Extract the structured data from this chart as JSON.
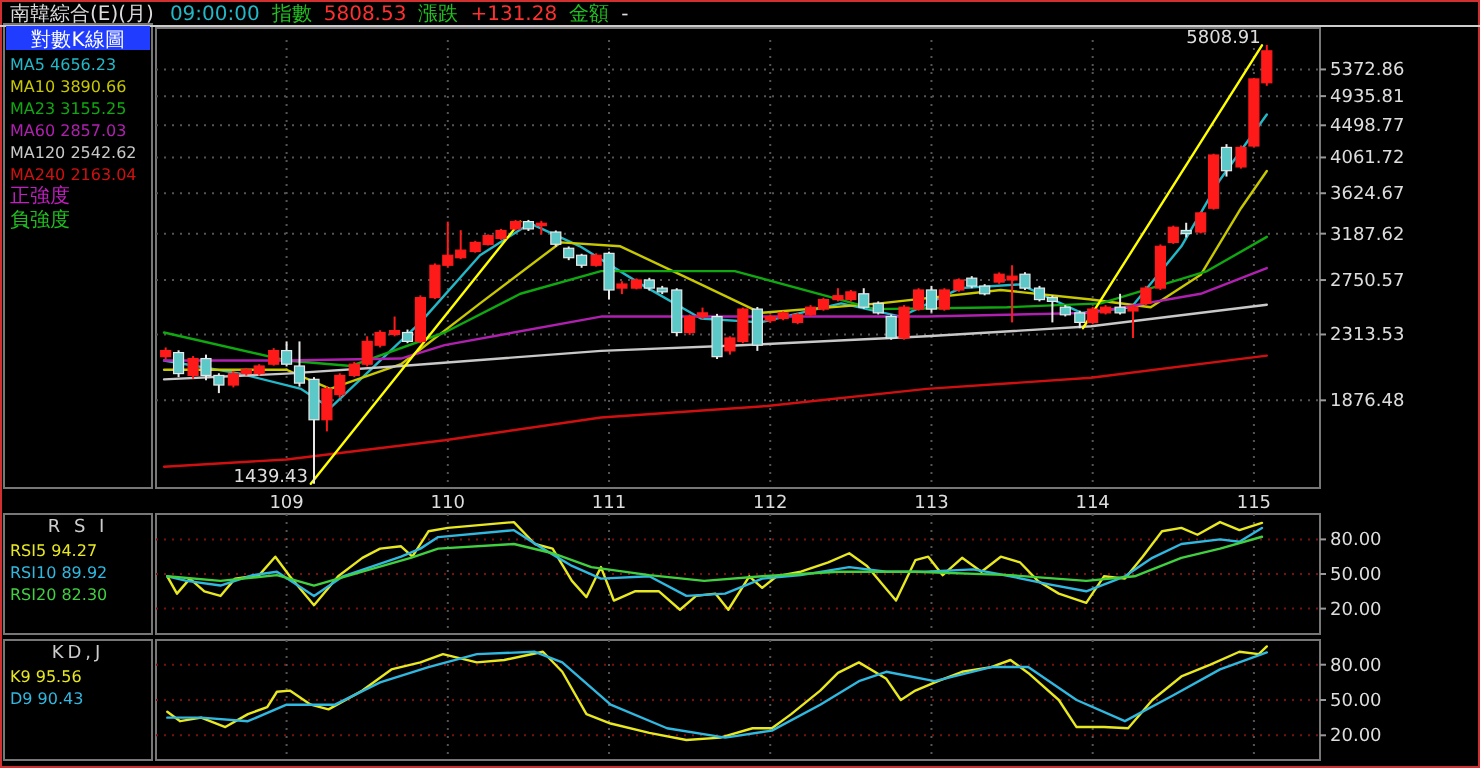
{
  "chart_data": [
    {
      "type": "candlestick",
      "title": "南韓綜合(E)(月)",
      "legend_title": "對數K線圖",
      "legend": "left",
      "log": true,
      "grid": true,
      "colors": [
        "#ff1a1a",
        "#5cc8c8",
        "#ff1a1a",
        "#5cc8c8",
        "#5cc8c8",
        "#ff1a1a",
        "#ff1a1a",
        "#ff1a1a",
        "#ff1a1a",
        "#5cc8c8",
        "#5cc8c8",
        "#5cc8c8",
        "#ff1a1a",
        "#ff1a1a",
        "#ff1a1a",
        "#ff1a1a",
        "#ff1a1a",
        "#ff1a1a",
        "#5cc8c8",
        "#ff1a1a",
        "#ff1a1a",
        "#ff1a1a",
        "#ff1a1a",
        "#ff1a1a",
        "#ff1a1a",
        "#ff1a1a",
        "#ff1a1a",
        "#5cc8c8",
        "#ff1a1a",
        "#5cc8c8",
        "#5cc8c8",
        "#5cc8c8",
        "#ff1a1a",
        "#5cc8c8",
        "#ff1a1a",
        "#ff1a1a",
        "#5cc8c8",
        "#5cc8c8",
        "#5cc8c8",
        "#ff1a1a",
        "#ff1a1a",
        "#5cc8c8",
        "#ff1a1a",
        "#ff1a1a",
        "#5cc8c8",
        "#ff1a1a",
        "#ff1a1a",
        "#ff1a1a",
        "#ff1a1a",
        "#ff1a1a",
        "#ff1a1a",
        "#ff1a1a",
        "#5cc8c8",
        "#5cc8c8",
        "#5cc8c8",
        "#ff1a1a",
        "#ff1a1a",
        "#5cc8c8",
        "#ff1a1a",
        "#ff1a1a",
        "#5cc8c8",
        "#5cc8c8",
        "#ff1a1a",
        "#ff1a1a",
        "#5cc8c8",
        "#5cc8c8",
        "#5cc8c8",
        "#5cc8c8",
        "#5cc8c8",
        "#ff1a1a",
        "#ff1a1a",
        "#5cc8c8",
        "#ff1a1a",
        "#ff1a1a",
        "#ff1a1a",
        "#ff1a1a",
        "#5cc8c8",
        "#ff1a1a",
        "#ff1a1a",
        "#5cc8c8",
        "#ff1a1a",
        "#ff1a1a",
        "#ff1a1a"
      ],
      "annotations": [
        "09:00:00",
        "指數",
        "5808.53",
        "漲跌",
        "+131.28",
        "金額",
        "-",
        "正強度",
        "負強度",
        {
          "text": "1439.43",
          "x": 109.17,
          "y": 1439.43
        },
        {
          "text": "5808.91",
          "x": 115.08,
          "y": 5808.91
        }
      ],
      "xlim": [
        108.19,
        115.41
      ],
      "xticks": [
        109,
        110,
        111,
        112,
        113,
        114,
        115
      ],
      "ylim": [
        1420,
        5900
      ],
      "yticks": [
        1876.48,
        2313.53,
        2750.57,
        3187.62,
        3624.67,
        4061.72,
        4498.77,
        4935.81,
        5372.86
      ],
      "x": [
        108.25,
        108.33,
        108.42,
        108.5,
        108.58,
        108.67,
        108.75,
        108.83,
        108.92,
        109.0,
        109.08,
        109.17,
        109.25,
        109.33,
        109.42,
        109.5,
        109.58,
        109.67,
        109.75,
        109.83,
        109.92,
        110.0,
        110.08,
        110.17,
        110.25,
        110.33,
        110.42,
        110.5,
        110.58,
        110.67,
        110.75,
        110.83,
        110.92,
        111.0,
        111.08,
        111.17,
        111.25,
        111.33,
        111.42,
        111.5,
        111.58,
        111.67,
        111.75,
        111.83,
        111.92,
        112.0,
        112.08,
        112.17,
        112.25,
        112.33,
        112.42,
        112.5,
        112.58,
        112.67,
        112.75,
        112.83,
        112.92,
        113.0,
        113.08,
        113.17,
        113.25,
        113.33,
        113.42,
        113.5,
        113.58,
        113.67,
        113.75,
        113.83,
        113.92,
        114.0,
        114.08,
        114.17,
        114.25,
        114.33,
        114.42,
        114.5,
        114.58,
        114.67,
        114.75,
        114.83,
        114.92,
        115.0,
        115.08
      ],
      "ohlc": [
        [
          2156,
          2220,
          2140,
          2198
        ],
        [
          2184,
          2200,
          2020,
          2043
        ],
        [
          2031,
          2160,
          2010,
          2143
        ],
        [
          2143,
          2170,
          2000,
          2031
        ],
        [
          2031,
          2045,
          1920,
          1970
        ],
        [
          1970,
          2060,
          1955,
          2043
        ],
        [
          2043,
          2080,
          2030,
          2068
        ],
        [
          2043,
          2105,
          2030,
          2093
        ],
        [
          2105,
          2215,
          2095,
          2198
        ],
        [
          2198,
          2263,
          2090,
          2105
        ],
        [
          2093,
          2263,
          1960,
          1982
        ],
        [
          2006,
          2020,
          1439.43,
          1764
        ],
        [
          1764,
          1960,
          1700,
          1946
        ],
        [
          1911,
          2045,
          1890,
          2031
        ],
        [
          2031,
          2120,
          2020,
          2105
        ],
        [
          2105,
          2300,
          2090,
          2263
        ],
        [
          2236,
          2345,
          2220,
          2328
        ],
        [
          2314,
          2449,
          2300,
          2342
        ],
        [
          2328,
          2350,
          2250,
          2263
        ],
        [
          2263,
          2620,
          2250,
          2601
        ],
        [
          2601,
          2900,
          2590,
          2883
        ],
        [
          2883,
          3312,
          2860,
          2976
        ],
        [
          2953,
          3223,
          2940,
          3025
        ],
        [
          3012,
          3115,
          3000,
          3100
        ],
        [
          3080,
          3180,
          3070,
          3168
        ],
        [
          3140,
          3235,
          3125,
          3220
        ],
        [
          3236,
          3330,
          3220,
          3312
        ],
        [
          3312,
          3330,
          3215,
          3236
        ],
        [
          3270,
          3320,
          3180,
          3295
        ],
        [
          3204,
          3220,
          3060,
          3082
        ],
        [
          3043,
          3060,
          2930,
          2953
        ],
        [
          2976,
          2990,
          2860,
          2883
        ],
        [
          2883,
          2995,
          2870,
          2976
        ],
        [
          2994,
          3010,
          2585,
          2665
        ],
        [
          2681,
          2740,
          2630,
          2716
        ],
        [
          2681,
          2765,
          2670,
          2751
        ],
        [
          2751,
          2770,
          2660,
          2681
        ],
        [
          2681,
          2700,
          2630,
          2649
        ],
        [
          2665,
          2680,
          2300,
          2328
        ],
        [
          2328,
          2465,
          2310,
          2449
        ],
        [
          2449,
          2520,
          2430,
          2478
        ],
        [
          2449,
          2470,
          2140,
          2156
        ],
        [
          2196,
          2300,
          2170,
          2288
        ],
        [
          2263,
          2520,
          2250,
          2508
        ],
        [
          2508,
          2525,
          2196,
          2236
        ],
        [
          2418,
          2465,
          2400,
          2449
        ],
        [
          2434,
          2490,
          2420,
          2478
        ],
        [
          2404,
          2478,
          2390,
          2463
        ],
        [
          2463,
          2540,
          2450,
          2523
        ],
        [
          2508,
          2600,
          2495,
          2585
        ],
        [
          2585,
          2680,
          2570,
          2617
        ],
        [
          2585,
          2665,
          2570,
          2649
        ],
        [
          2633,
          2680,
          2510,
          2523
        ],
        [
          2554,
          2570,
          2465,
          2478
        ],
        [
          2449,
          2465,
          2275,
          2288
        ],
        [
          2288,
          2540,
          2275,
          2523
        ],
        [
          2508,
          2680,
          2495,
          2665
        ],
        [
          2665,
          2700,
          2480,
          2508
        ],
        [
          2508,
          2680,
          2495,
          2665
        ],
        [
          2665,
          2765,
          2650,
          2751
        ],
        [
          2767,
          2785,
          2680,
          2698
        ],
        [
          2698,
          2715,
          2620,
          2633
        ],
        [
          2733,
          2818,
          2718,
          2802
        ],
        [
          2751,
          2883,
          2404,
          2785
        ],
        [
          2802,
          2820,
          2665,
          2681
        ],
        [
          2681,
          2700,
          2570,
          2585
        ],
        [
          2601,
          2620,
          2404,
          2570
        ],
        [
          2523,
          2540,
          2450,
          2463
        ],
        [
          2478,
          2495,
          2360,
          2404
        ],
        [
          2404,
          2525,
          2390,
          2508
        ],
        [
          2478,
          2540,
          2465,
          2523
        ],
        [
          2523,
          2633,
          2465,
          2478
        ],
        [
          2493,
          2540,
          2288,
          2523
        ],
        [
          2554,
          2700,
          2540,
          2681
        ],
        [
          2681,
          3080,
          2665,
          3062
        ],
        [
          3100,
          3270,
          3085,
          3253
        ],
        [
          3220,
          3300,
          3150,
          3188
        ],
        [
          3204,
          3420,
          3190,
          3405
        ],
        [
          3456,
          4110,
          3440,
          4093
        ],
        [
          4193,
          4237,
          3822,
          3894
        ],
        [
          3941,
          4220,
          3920,
          4193
        ],
        [
          4212,
          5230,
          4190,
          5213
        ],
        [
          5150,
          5808.91,
          5100,
          5700
        ]
      ],
      "series": [
        {
          "name": "MA5 4656.23",
          "type": "line",
          "color": "#22b8c8",
          "x": [
            108.24,
            108.71,
            109.09,
            109.27,
            109.52,
            109.83,
            110.2,
            110.51,
            110.82,
            111.2,
            111.57,
            111.94,
            112.44,
            112.81,
            113.18,
            113.55,
            113.93,
            114.24,
            114.55,
            114.79,
            115.08
          ],
          "values": [
            2130,
            2043,
            1946,
            1831,
            2068,
            2404,
            2976,
            3293,
            3062,
            2713,
            2434,
            2404,
            2554,
            2449,
            2681,
            2713,
            2478,
            2523,
            3062,
            3784,
            4656.23
          ]
        },
        {
          "name": "MA10 3890.66",
          "type": "line",
          "color": "#c8c800",
          "x": [
            108.24,
            109.0,
            109.27,
            109.71,
            110.2,
            110.7,
            111.07,
            111.57,
            111.94,
            112.68,
            113.43,
            113.99,
            114.36,
            114.67,
            114.92,
            115.08
          ],
          "values": [
            2068,
            2068,
            1946,
            2105,
            2554,
            3100,
            3062,
            2713,
            2478,
            2554,
            2665,
            2585,
            2523,
            2797,
            3456,
            3890.66
          ]
        },
        {
          "name": "MA23 3155.25",
          "type": "line",
          "color": "#10a810",
          "x": [
            108.24,
            109.0,
            109.4,
            109.98,
            110.45,
            110.95,
            111.78,
            112.65,
            113.47,
            114.05,
            114.71,
            115.08
          ],
          "values": [
            2328,
            2130,
            2093,
            2328,
            2633,
            2830,
            2830,
            2508,
            2523,
            2554,
            2830,
            3155.25
          ]
        },
        {
          "name": "MA60 2857.03",
          "type": "line",
          "color": "#b020b0",
          "x": [
            108.24,
            109.0,
            109.71,
            109.98,
            110.95,
            111.82,
            112.97,
            113.99,
            114.67,
            115.08
          ],
          "values": [
            2130,
            2130,
            2143,
            2236,
            2449,
            2449,
            2449,
            2478,
            2633,
            2857.03
          ]
        },
        {
          "name": "MA120 2542.62",
          "type": "line",
          "color": "#c8c8c8",
          "x": [
            108.24,
            109.0,
            109.71,
            110.95,
            111.82,
            112.97,
            113.99,
            115.08
          ],
          "values": [
            2006,
            2043,
            2093,
            2196,
            2236,
            2300,
            2375,
            2542.62
          ]
        },
        {
          "name": "MA240 2163.04",
          "type": "line",
          "color": "#d01010",
          "x": [
            108.24,
            109.0,
            109.98,
            110.95,
            111.98,
            112.97,
            113.99,
            115.08
          ],
          "values": [
            1519,
            1555,
            1653,
            1777,
            1843,
            1946,
            2016,
            2163.04
          ]
        },
        {
          "type": "line",
          "color": "#ffff00",
          "x": [
            109.15,
            110.45
          ],
          "values": [
            1439.43,
            3312
          ]
        },
        {
          "type": "line",
          "color": "#ffff00",
          "x": [
            113.94,
            115.05
          ],
          "values": [
            2360,
            5800
          ]
        }
      ]
    },
    {
      "type": "line",
      "title": "R S I",
      "legend": "left",
      "grid": true,
      "tick_labels": "y",
      "xlim": [
        108.19,
        115.41
      ],
      "xticks": [
        109,
        110,
        111,
        112,
        113,
        114,
        115
      ],
      "ylim": [
        -2,
        102
      ],
      "yticks": [
        {
          "value": 20,
          "label": "20.00"
        },
        {
          "value": 50,
          "label": "50.00"
        },
        {
          "value": 80,
          "label": "80.00"
        }
      ],
      "series": [
        {
          "name": "RSI5 94.27",
          "color": "#e8e820",
          "x": [
            108.26,
            108.32,
            108.4,
            108.49,
            108.59,
            108.68,
            108.83,
            108.93,
            109.02,
            109.17,
            109.32,
            109.47,
            109.58,
            109.71,
            109.78,
            109.88,
            110.0,
            110.41,
            110.54,
            110.65,
            110.77,
            110.86,
            110.95,
            111.03,
            111.16,
            111.31,
            111.44,
            111.54,
            111.66,
            111.74,
            111.87,
            111.95,
            112.04,
            112.19,
            112.36,
            112.49,
            112.6,
            112.78,
            112.9,
            112.98,
            113.07,
            113.19,
            113.31,
            113.43,
            113.55,
            113.66,
            113.79,
            113.96,
            114.07,
            114.2,
            114.31,
            114.43,
            114.55,
            114.65,
            114.79,
            114.91,
            115.05
          ],
          "values": [
            48,
            33,
            46,
            35,
            31,
            46,
            49,
            65,
            48,
            23,
            48,
            64,
            72,
            74,
            65,
            87,
            90,
            95,
            76,
            72,
            44,
            30,
            56,
            27,
            35,
            35,
            19,
            31,
            33,
            19,
            48,
            38,
            48,
            52,
            60,
            68,
            57,
            27,
            62,
            65,
            49,
            64,
            52,
            65,
            60,
            44,
            33,
            25,
            48,
            46,
            65,
            87,
            90,
            84,
            95,
            88,
            94.27
          ]
        },
        {
          "name": "RSI10 89.92",
          "color": "#30b8e0",
          "x": [
            108.26,
            108.38,
            108.59,
            108.79,
            108.94,
            109.17,
            109.35,
            109.71,
            109.83,
            109.94,
            110.41,
            110.59,
            110.77,
            110.95,
            111.25,
            111.48,
            111.72,
            111.95,
            112.19,
            112.49,
            112.72,
            112.96,
            113.26,
            113.49,
            113.73,
            113.96,
            114.2,
            114.37,
            114.55,
            114.79,
            114.91,
            115.05
          ],
          "values": [
            48,
            44,
            40,
            49,
            52,
            31,
            48,
            65,
            72,
            82,
            88,
            72,
            57,
            46,
            48,
            31,
            33,
            46,
            49,
            56,
            52,
            52,
            54,
            48,
            41,
            35,
            48,
            64,
            76,
            80,
            78,
            89.92
          ]
        },
        {
          "name": "RSI20 82.30",
          "color": "#40d040",
          "x": [
            108.26,
            108.59,
            108.94,
            109.17,
            109.47,
            109.77,
            109.94,
            110.41,
            110.65,
            110.89,
            111.25,
            111.59,
            111.95,
            112.42,
            112.9,
            113.49,
            113.96,
            114.26,
            114.55,
            114.79,
            115.05
          ],
          "values": [
            48,
            44,
            49,
            40,
            52,
            64,
            72,
            76,
            68,
            56,
            49,
            44,
            48,
            52,
            52,
            49,
            44,
            48,
            64,
            72,
            82.3
          ]
        }
      ]
    },
    {
      "type": "line",
      "title": "KD,J",
      "legend": "left",
      "grid": true,
      "tick_labels": "y",
      "xlim": [
        108.19,
        115.41
      ],
      "xticks": [
        109,
        110,
        111,
        112,
        113,
        114,
        115
      ],
      "ylim": [
        -1,
        101
      ],
      "yticks": [
        {
          "value": 20,
          "label": "20.00"
        },
        {
          "value": 50,
          "label": "50.00"
        },
        {
          "value": 80,
          "label": "80.00"
        }
      ],
      "series": [
        {
          "name": "K9 95.56",
          "color": "#e8e820",
          "x": [
            108.26,
            108.34,
            108.47,
            108.62,
            108.76,
            108.88,
            108.94,
            109.02,
            109.15,
            109.26,
            109.47,
            109.65,
            109.83,
            109.97,
            110.18,
            110.35,
            110.59,
            110.71,
            110.86,
            111.01,
            111.25,
            111.48,
            111.69,
            111.89,
            112.01,
            112.13,
            112.31,
            112.42,
            112.55,
            112.72,
            112.81,
            112.9,
            113.04,
            113.19,
            113.37,
            113.49,
            113.6,
            113.79,
            113.9,
            114.07,
            114.22,
            114.37,
            114.55,
            114.73,
            114.91,
            115.03,
            115.08
          ],
          "values": [
            40,
            32,
            35,
            27,
            38,
            44,
            57,
            58,
            46,
            42,
            58,
            76,
            82,
            89,
            82,
            84,
            91,
            74,
            38,
            30,
            22,
            16,
            18,
            26,
            26,
            38,
            58,
            73,
            82,
            68,
            50,
            58,
            66,
            74,
            78,
            84,
            73,
            50,
            27,
            27,
            26,
            50,
            70,
            80,
            91,
            89,
            95.56
          ]
        },
        {
          "name": "D9 90.43",
          "color": "#30b8e0",
          "x": [
            108.26,
            108.47,
            108.76,
            109.0,
            109.3,
            109.58,
            109.88,
            110.18,
            110.54,
            110.71,
            111.01,
            111.36,
            111.72,
            112.01,
            112.31,
            112.55,
            112.72,
            113.02,
            113.37,
            113.6,
            113.9,
            114.2,
            114.5,
            114.79,
            115.08
          ],
          "values": [
            35,
            35,
            32,
            46,
            46,
            65,
            78,
            89,
            91,
            82,
            46,
            26,
            18,
            24,
            46,
            66,
            74,
            66,
            78,
            78,
            50,
            32,
            54,
            76,
            90.43
          ]
        }
      ]
    }
  ]
}
